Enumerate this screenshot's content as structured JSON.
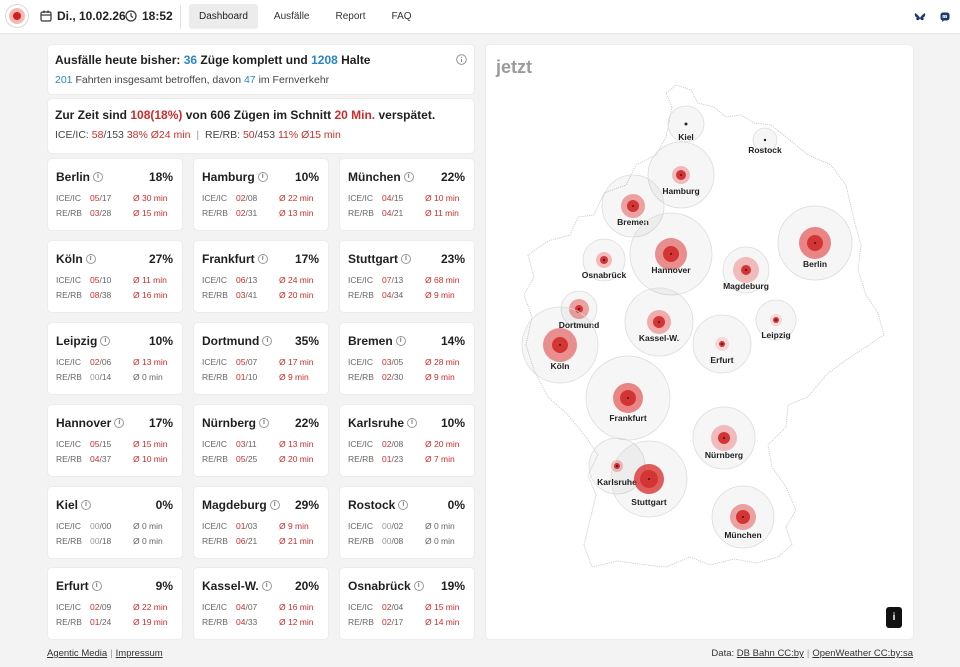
{
  "header": {
    "date": "Di., 10.02.26",
    "time": "18:52",
    "tabs": [
      {
        "label": "Dashboard",
        "active": true
      },
      {
        "label": "Ausfälle",
        "active": false
      },
      {
        "label": "Report",
        "active": false
      },
      {
        "label": "FAQ",
        "active": false
      }
    ]
  },
  "summary": {
    "cancel_prefix": "Ausfälle heute bisher:",
    "cancel_trains": "36",
    "cancel_mid": "Züge komplett und",
    "cancel_stops": "1208",
    "cancel_suffix": "Halte",
    "affected_count": "201",
    "affected_mid": "Fahrten insgesamt betroffen, davon",
    "affected_long": "47",
    "affected_suffix": "im Fernverkehr",
    "delay_prefix": "Zur Zeit sind",
    "delay_count": "108",
    "delay_pct": "(18%)",
    "delay_mid": "von 606 Zügen im Schnitt",
    "delay_min": "20 Min.",
    "delay_suffix": "verspätet.",
    "ice_label": "ICE/IC:",
    "ice_n": "58",
    "ice_d": "/153",
    "ice_pct": "38%",
    "ice_avg": "Ø24 min",
    "re_label": "RE/RB:",
    "re_n": "50",
    "re_d": "/453",
    "re_pct": "11%",
    "re_avg": "Ø15 min"
  },
  "labels": {
    "ice": "ICE/IC",
    "re": "RE/RB"
  },
  "cities": [
    {
      "name": "Berlin",
      "pct": "18%",
      "ice_n": "05",
      "ice_d": "/17",
      "ice_delay": "Ø 30 min",
      "re_n": "03",
      "re_d": "/28",
      "re_delay": "Ø 15 min"
    },
    {
      "name": "Hamburg",
      "pct": "10%",
      "ice_n": "02",
      "ice_d": "/08",
      "ice_delay": "Ø 22 min",
      "re_n": "02",
      "re_d": "/31",
      "re_delay": "Ø 13 min"
    },
    {
      "name": "München",
      "pct": "22%",
      "ice_n": "04",
      "ice_d": "/15",
      "ice_delay": "Ø 10 min",
      "re_n": "04",
      "re_d": "/21",
      "re_delay": "Ø 11 min"
    },
    {
      "name": "Köln",
      "pct": "27%",
      "ice_n": "05",
      "ice_d": "/10",
      "ice_delay": "Ø 11 min",
      "re_n": "08",
      "re_d": "/38",
      "re_delay": "Ø 16 min"
    },
    {
      "name": "Frankfurt",
      "pct": "17%",
      "ice_n": "06",
      "ice_d": "/13",
      "ice_delay": "Ø 24 min",
      "re_n": "03",
      "re_d": "/41",
      "re_delay": "Ø 20 min"
    },
    {
      "name": "Stuttgart",
      "pct": "23%",
      "ice_n": "07",
      "ice_d": "/13",
      "ice_delay": "Ø 68 min",
      "re_n": "04",
      "re_d": "/34",
      "re_delay": "Ø 9 min"
    },
    {
      "name": "Leipzig",
      "pct": "10%",
      "ice_n": "02",
      "ice_d": "/06",
      "ice_delay": "Ø 13 min",
      "re_n": "00",
      "re_d": "/14",
      "re_delay": "Ø 0 min"
    },
    {
      "name": "Dortmund",
      "pct": "35%",
      "ice_n": "05",
      "ice_d": "/07",
      "ice_delay": "Ø 17 min",
      "re_n": "01",
      "re_d": "/10",
      "re_delay": "Ø 9 min"
    },
    {
      "name": "Bremen",
      "pct": "14%",
      "ice_n": "03",
      "ice_d": "/05",
      "ice_delay": "Ø 28 min",
      "re_n": "02",
      "re_d": "/30",
      "re_delay": "Ø 9 min"
    },
    {
      "name": "Hannover",
      "pct": "17%",
      "ice_n": "05",
      "ice_d": "/15",
      "ice_delay": "Ø 15 min",
      "re_n": "04",
      "re_d": "/37",
      "re_delay": "Ø 10 min"
    },
    {
      "name": "Nürnberg",
      "pct": "22%",
      "ice_n": "03",
      "ice_d": "/11",
      "ice_delay": "Ø 13 min",
      "re_n": "05",
      "re_d": "/25",
      "re_delay": "Ø 20 min"
    },
    {
      "name": "Karlsruhe",
      "pct": "10%",
      "ice_n": "02",
      "ice_d": "/08",
      "ice_delay": "Ø 20 min",
      "re_n": "01",
      "re_d": "/23",
      "re_delay": "Ø 7 min"
    },
    {
      "name": "Kiel",
      "pct": "0%",
      "ice_n": "00",
      "ice_d": "/00",
      "ice_delay": "Ø 0 min",
      "re_n": "00",
      "re_d": "/18",
      "re_delay": "Ø 0 min"
    },
    {
      "name": "Magdeburg",
      "pct": "29%",
      "ice_n": "01",
      "ice_d": "/03",
      "ice_delay": "Ø 9 min",
      "re_n": "06",
      "re_d": "/21",
      "re_delay": "Ø 21 min"
    },
    {
      "name": "Rostock",
      "pct": "0%",
      "ice_n": "00",
      "ice_d": "/02",
      "ice_delay": "Ø 0 min",
      "re_n": "00",
      "re_d": "/08",
      "re_delay": "Ø 0 min"
    },
    {
      "name": "Erfurt",
      "pct": "9%",
      "ice_n": "02",
      "ice_d": "/09",
      "ice_delay": "Ø 22 min",
      "re_n": "01",
      "re_d": "/24",
      "re_delay": "Ø 19 min"
    },
    {
      "name": "Kassel-W.",
      "pct": "20%",
      "ice_n": "04",
      "ice_d": "/07",
      "ice_delay": "Ø 16 min",
      "re_n": "04",
      "re_d": "/33",
      "re_delay": "Ø 12 min"
    },
    {
      "name": "Osnabrück",
      "pct": "19%",
      "ice_n": "02",
      "ice_d": "/04",
      "ice_delay": "Ø 15 min",
      "re_n": "02",
      "re_d": "/17",
      "re_delay": "Ø 14 min"
    }
  ],
  "map": {
    "title": "jetzt",
    "info_label": "i",
    "cities": [
      {
        "name": "Kiel"
      },
      {
        "name": "Rostock"
      },
      {
        "name": "Hamburg"
      },
      {
        "name": "Bremen"
      },
      {
        "name": "Berlin"
      },
      {
        "name": "Osnabrück"
      },
      {
        "name": "Hannover"
      },
      {
        "name": "Magdeburg"
      },
      {
        "name": "Dortmund"
      },
      {
        "name": "Leipzig"
      },
      {
        "name": "Kassel-W."
      },
      {
        "name": "Köln"
      },
      {
        "name": "Erfurt"
      },
      {
        "name": "Frankfurt"
      },
      {
        "name": "Nürnberg"
      },
      {
        "name": "Karlsruhe"
      },
      {
        "name": "Stuttgart"
      },
      {
        "name": "München"
      }
    ]
  },
  "footer": {
    "left_link1": "Agentic Media",
    "left_link2": "Impressum",
    "right_prefix": "Data:",
    "right_link1": "DB Bahn CC:by",
    "right_link2": "OpenWeather CC:by:sa"
  }
}
